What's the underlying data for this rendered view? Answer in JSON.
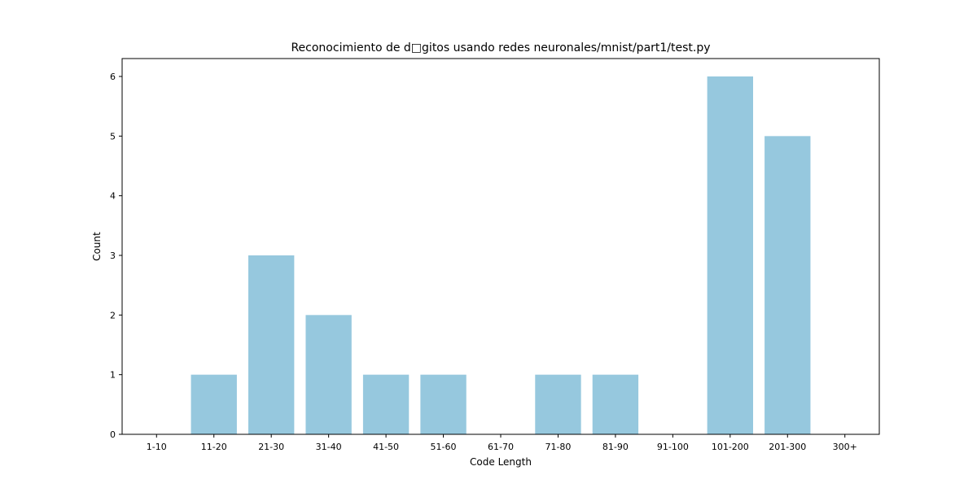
{
  "chart_data": {
    "type": "bar",
    "title": "Reconocimiento de d□gitos usando redes neuronales/mnist/part1/test.py",
    "xlabel": "Code Length",
    "ylabel": "Count",
    "categories": [
      "1-10",
      "11-20",
      "21-30",
      "31-40",
      "41-50",
      "51-60",
      "61-70",
      "71-80",
      "81-90",
      "91-100",
      "101-200",
      "201-300",
      "300+"
    ],
    "values": [
      0,
      1,
      3,
      2,
      1,
      1,
      0,
      1,
      1,
      0,
      6,
      5,
      0
    ],
    "ylim": [
      0,
      6.3
    ],
    "yticks": [
      0,
      1,
      2,
      3,
      4,
      5,
      6
    ],
    "bar_color": "#96c8de",
    "grid": false,
    "legend": "none"
  }
}
